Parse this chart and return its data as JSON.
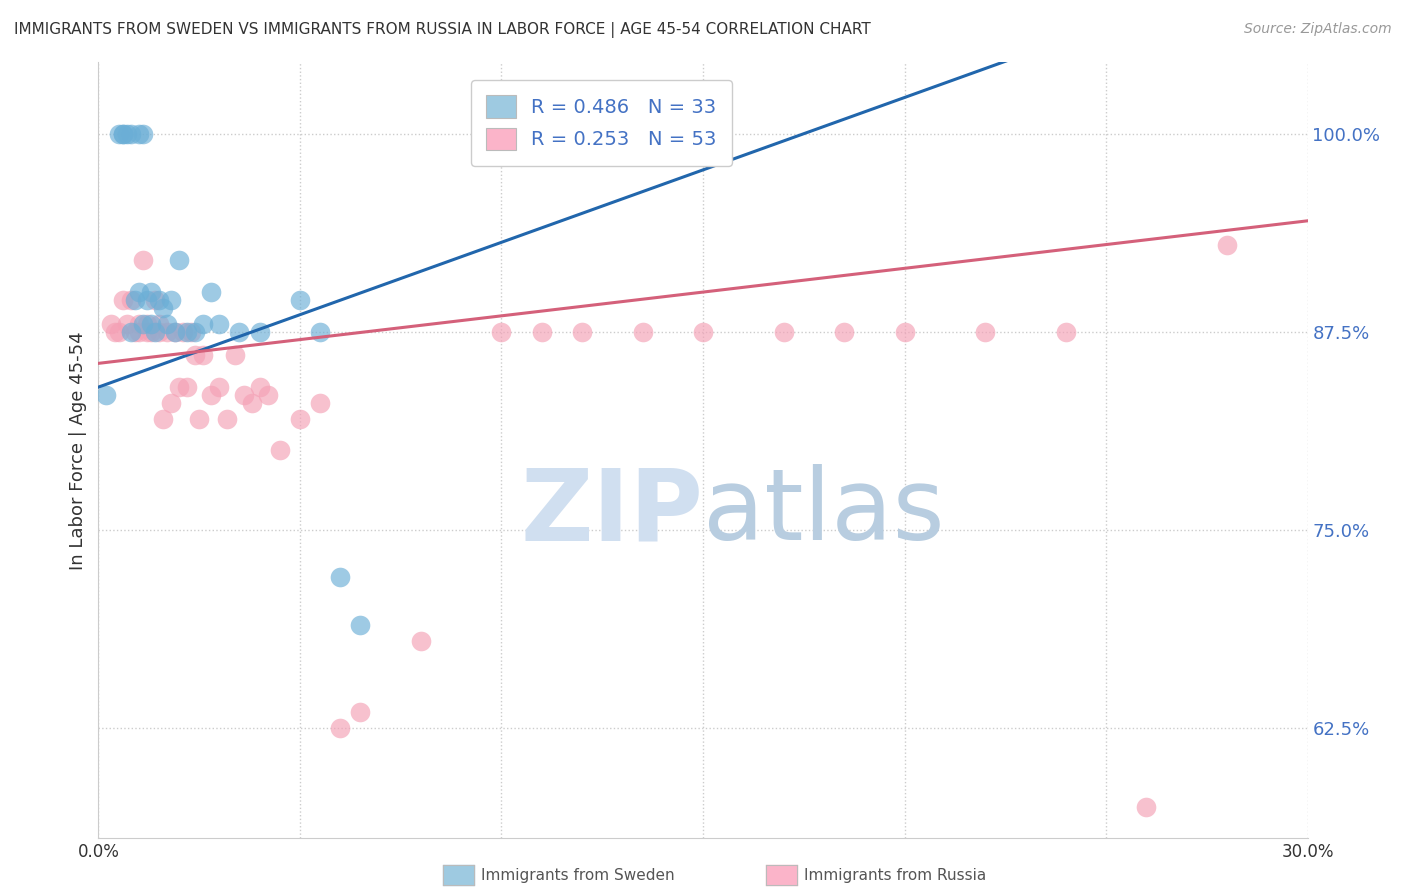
{
  "title": "IMMIGRANTS FROM SWEDEN VS IMMIGRANTS FROM RUSSIA IN LABOR FORCE | AGE 45-54 CORRELATION CHART",
  "source": "Source: ZipAtlas.com",
  "ylabel": "In Labor Force | Age 45-54",
  "xlim": [
    0.0,
    0.3
  ],
  "ylim": [
    0.555,
    1.045
  ],
  "yticks": [
    0.625,
    0.75,
    0.875,
    1.0
  ],
  "ytick_labels": [
    "62.5%",
    "75.0%",
    "87.5%",
    "100.0%"
  ],
  "xticks": [
    0.0,
    0.05,
    0.1,
    0.15,
    0.2,
    0.25,
    0.3
  ],
  "xtick_labels": [
    "0.0%",
    "",
    "",
    "",
    "",
    "",
    "30.0%"
  ],
  "sweden_R": 0.486,
  "sweden_N": 33,
  "russia_R": 0.253,
  "russia_N": 53,
  "sweden_color": "#6baed6",
  "russia_color": "#f4a0b5",
  "sweden_line_color": "#2166ac",
  "russia_line_color": "#d4607a",
  "legend_color_sweden": "#9ecae1",
  "legend_color_russia": "#fbb4c9",
  "sweden_x": [
    0.002,
    0.005,
    0.006,
    0.006,
    0.007,
    0.008,
    0.008,
    0.009,
    0.01,
    0.01,
    0.011,
    0.011,
    0.012,
    0.013,
    0.013,
    0.014,
    0.015,
    0.016,
    0.017,
    0.018,
    0.019,
    0.02,
    0.022,
    0.024,
    0.026,
    0.028,
    0.03,
    0.035,
    0.04,
    0.05,
    0.055,
    0.06,
    0.065
  ],
  "sweden_y": [
    0.835,
    1.0,
    1.0,
    1.0,
    1.0,
    1.0,
    0.875,
    0.895,
    1.0,
    0.9,
    1.0,
    0.88,
    0.895,
    0.88,
    0.9,
    0.875,
    0.895,
    0.89,
    0.88,
    0.895,
    0.875,
    0.92,
    0.875,
    0.875,
    0.88,
    0.9,
    0.88,
    0.875,
    0.875,
    0.895,
    0.875,
    0.72,
    0.69
  ],
  "russia_x": [
    0.003,
    0.004,
    0.005,
    0.006,
    0.007,
    0.008,
    0.009,
    0.01,
    0.01,
    0.011,
    0.012,
    0.012,
    0.013,
    0.014,
    0.015,
    0.015,
    0.016,
    0.017,
    0.018,
    0.019,
    0.02,
    0.021,
    0.022,
    0.023,
    0.024,
    0.025,
    0.026,
    0.028,
    0.03,
    0.032,
    0.034,
    0.036,
    0.038,
    0.04,
    0.042,
    0.045,
    0.05,
    0.055,
    0.06,
    0.065,
    0.08,
    0.1,
    0.11,
    0.12,
    0.135,
    0.15,
    0.17,
    0.185,
    0.2,
    0.22,
    0.24,
    0.26,
    0.28
  ],
  "russia_y": [
    0.88,
    0.875,
    0.875,
    0.895,
    0.88,
    0.895,
    0.875,
    0.875,
    0.88,
    0.92,
    0.875,
    0.88,
    0.875,
    0.895,
    0.875,
    0.88,
    0.82,
    0.875,
    0.83,
    0.875,
    0.84,
    0.875,
    0.84,
    0.875,
    0.86,
    0.82,
    0.86,
    0.835,
    0.84,
    0.82,
    0.86,
    0.835,
    0.83,
    0.84,
    0.835,
    0.8,
    0.82,
    0.83,
    0.625,
    0.635,
    0.68,
    0.875,
    0.875,
    0.875,
    0.875,
    0.875,
    0.875,
    0.875,
    0.875,
    0.875,
    0.875,
    0.575,
    0.93
  ],
  "watermark_zip_color": "#d0dff0",
  "watermark_atlas_color": "#b8cde0"
}
